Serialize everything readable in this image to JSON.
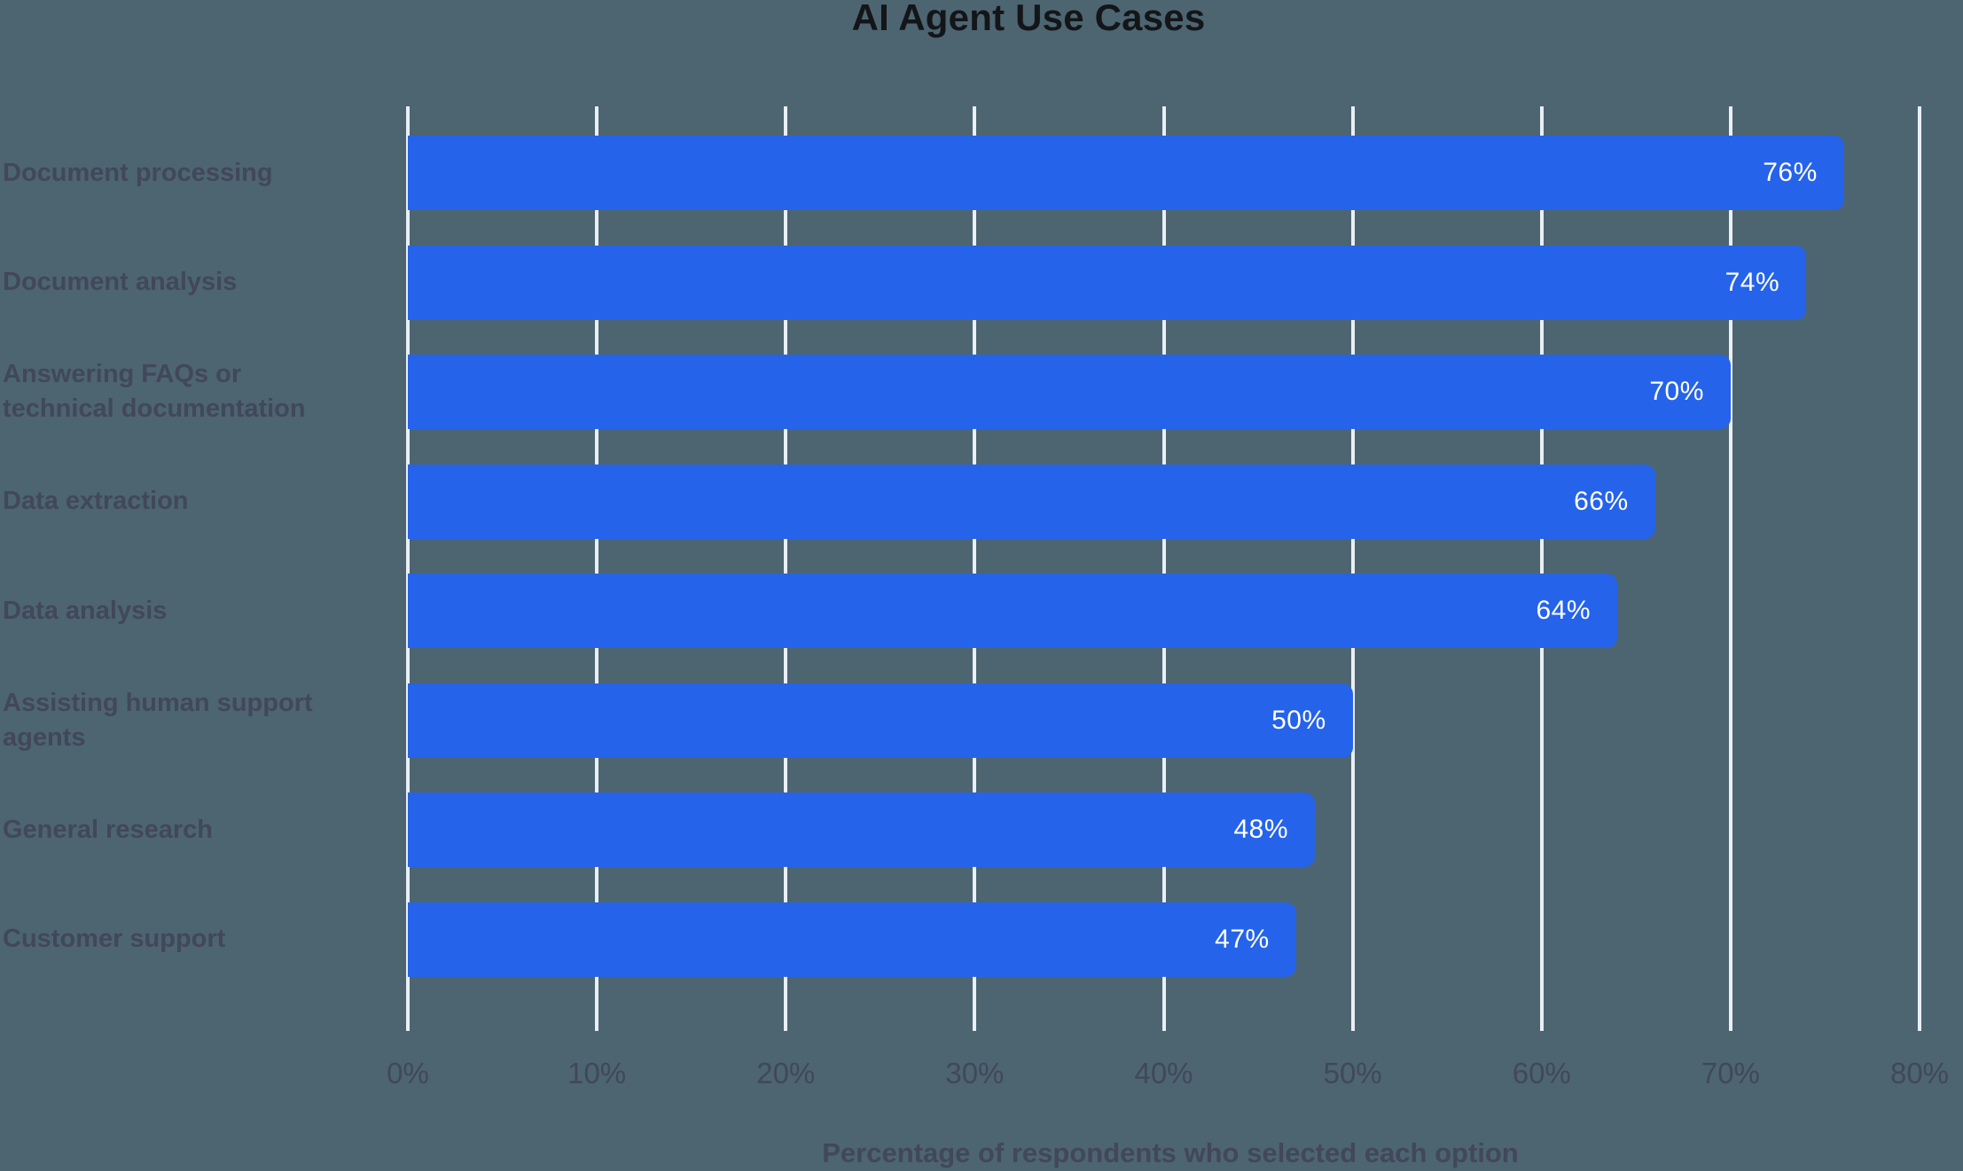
{
  "title": "AI Agent Use Cases",
  "chart_data": {
    "type": "bar",
    "orientation": "horizontal",
    "title": "AI Agent Use Cases",
    "xlabel": "Percentage of respondents who selected each option",
    "ylabel": "",
    "categories": [
      "Document processing",
      "Document analysis",
      "Answering FAQs or\ntechnical documentation",
      "Data extraction",
      "Data analysis",
      "Assisting human support\nagents",
      "General research",
      "Customer support"
    ],
    "values": [
      76,
      74,
      70,
      66,
      64,
      50,
      48,
      47
    ],
    "value_labels": [
      "76%",
      "74%",
      "70%",
      "66%",
      "64%",
      "50%",
      "48%",
      "47%"
    ],
    "xlim": [
      0,
      80
    ],
    "x_ticks": [
      0,
      10,
      20,
      30,
      40,
      50,
      60,
      70,
      80
    ],
    "x_tick_labels": [
      "0%",
      "10%",
      "20%",
      "30%",
      "40%",
      "50%",
      "60%",
      "70%",
      "80%"
    ],
    "grid": true,
    "legend": false,
    "bar_corner_radius": "rounded-right"
  },
  "colors": {
    "background": "#4C6571",
    "bar": "#2563EB",
    "gridline": "#EAEEF5",
    "title_text": "#141519",
    "axis_text": "#42475A",
    "value_text": "#FFFFFF"
  }
}
